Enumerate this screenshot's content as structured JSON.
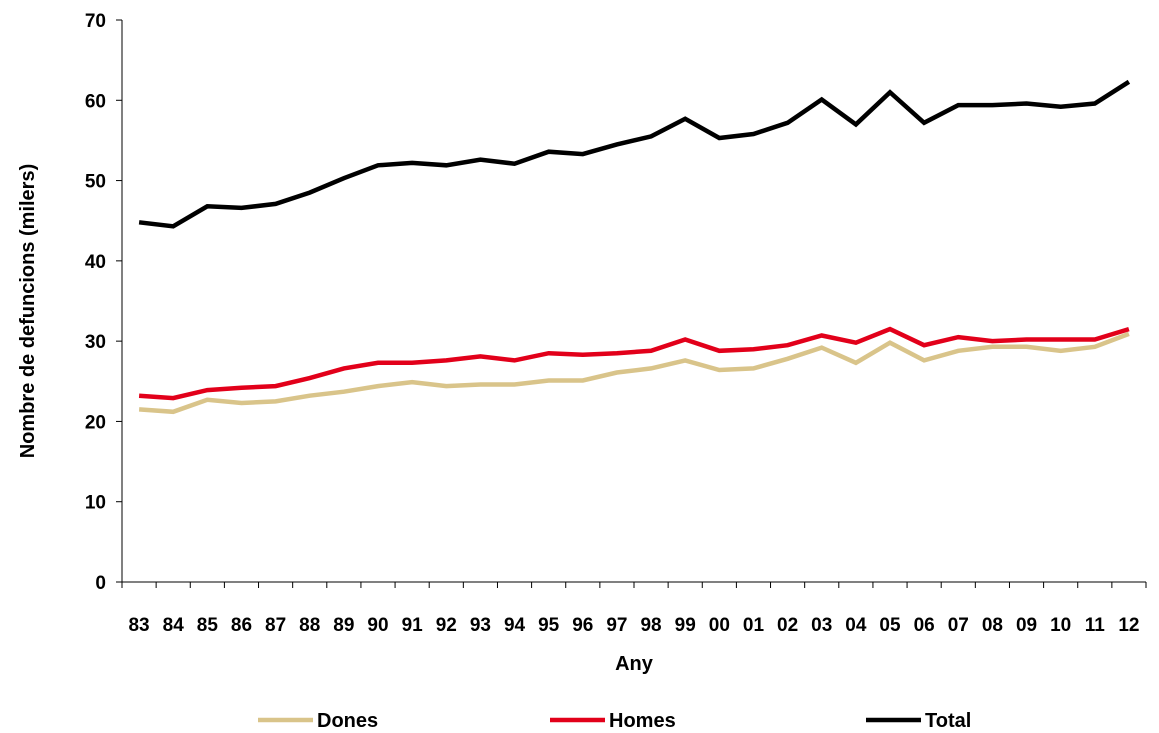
{
  "chart_data": {
    "type": "line",
    "title": "",
    "xlabel": "Any",
    "ylabel": "Nombre de defuncions (milers)",
    "categories": [
      "83",
      "84",
      "85",
      "86",
      "87",
      "88",
      "89",
      "90",
      "91",
      "92",
      "93",
      "94",
      "95",
      "96",
      "97",
      "98",
      "99",
      "00",
      "01",
      "02",
      "03",
      "04",
      "05",
      "06",
      "07",
      "08",
      "09",
      "10",
      "11",
      "12"
    ],
    "ylim": [
      0,
      70
    ],
    "yticks": [
      0,
      10,
      20,
      30,
      40,
      50,
      60,
      70
    ],
    "grid": false,
    "legend_position": "bottom",
    "series": [
      {
        "name": "Dones",
        "color": "#D9C48A",
        "values": [
          21.5,
          21.2,
          22.7,
          22.3,
          22.5,
          23.2,
          23.7,
          24.4,
          24.9,
          24.4,
          24.6,
          24.6,
          25.1,
          25.1,
          26.1,
          26.6,
          27.6,
          26.4,
          26.6,
          27.8,
          29.2,
          27.3,
          29.8,
          27.6,
          28.8,
          29.3,
          29.3,
          28.8,
          29.3,
          30.9
        ]
      },
      {
        "name": "Homes",
        "color": "#E2001A",
        "values": [
          23.2,
          22.9,
          23.9,
          24.2,
          24.4,
          25.4,
          26.6,
          27.3,
          27.3,
          27.6,
          28.1,
          27.6,
          28.5,
          28.3,
          28.5,
          28.8,
          30.2,
          28.8,
          29.0,
          29.5,
          30.7,
          29.8,
          31.5,
          29.5,
          30.5,
          30.0,
          30.2,
          30.2,
          30.2,
          31.5
        ]
      },
      {
        "name": "Total",
        "color": "#000000",
        "values": [
          44.8,
          44.3,
          46.8,
          46.6,
          47.1,
          48.5,
          50.3,
          51.9,
          52.2,
          51.9,
          52.6,
          52.1,
          53.6,
          53.3,
          54.5,
          55.5,
          57.7,
          55.3,
          55.8,
          57.2,
          60.1,
          57.0,
          61.0,
          57.2,
          59.4,
          59.4,
          59.6,
          59.2,
          59.6,
          62.3
        ]
      }
    ]
  }
}
